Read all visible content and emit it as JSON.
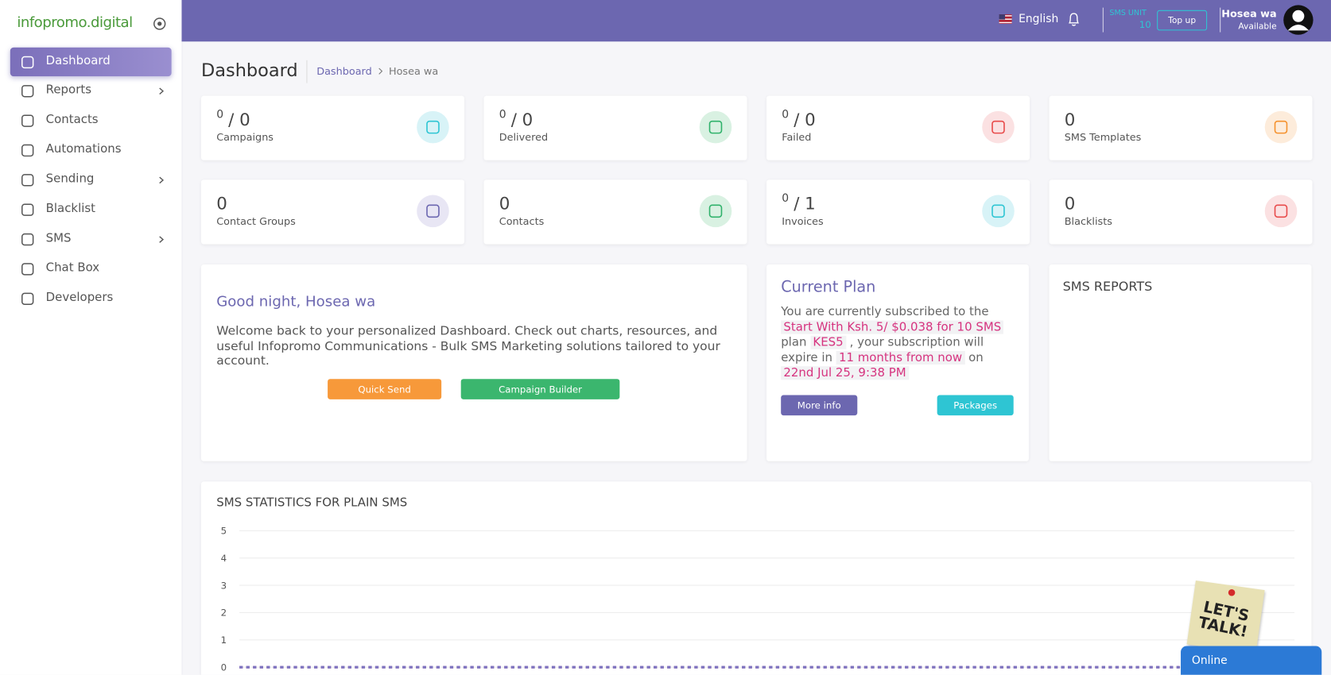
{
  "sidebar": {
    "logo": "infopromo.digital",
    "menu": [
      "Dashboard",
      "Reports",
      "Contacts",
      "Automations",
      "Sending",
      "Blacklist",
      "SMS",
      "Chat Box",
      "Developers"
    ]
  },
  "topbar": {
    "language": "English",
    "sms_unit_label": "SMS UNIT",
    "sms_unit_value": 10,
    "top_up": "Top up",
    "user_name": "Hosea wa",
    "user_status": "Available"
  },
  "page": {
    "title": "Dashboard",
    "breadcrumb": [
      "Dashboard",
      "Hosea wa"
    ]
  },
  "stats": [
    {
      "sup": 0,
      "main": "/ 0",
      "label": "Campaigns"
    },
    {
      "sup": 0,
      "main": "/ 0",
      "label": "Delivered"
    },
    {
      "sup": 0,
      "main": "/ 0",
      "label": "Failed"
    },
    {
      "main": 0,
      "label": "SMS Templates"
    },
    {
      "main": 0,
      "label": "Contact Groups"
    },
    {
      "main": 0,
      "label": "Contacts"
    },
    {
      "sup": 0,
      "main": "/ 1",
      "label": "Invoices"
    },
    {
      "main": 0,
      "label": "Blacklists"
    }
  ],
  "welcome": {
    "greeting": "Good night, Hosea wa",
    "text": "Welcome back to your personalized Dashboard. Check out charts, resources, and useful Infopromo Communications - Bulk SMS Marketing solutions tailored to your account.",
    "buttons": [
      "Quick Send",
      "Campaign Builder"
    ]
  },
  "plan": {
    "title": "Current Plan",
    "segments": [
      {
        "text": "You are currently subscribed to the",
        "highlight": false
      },
      {
        "text": "Start With Ksh. 5/ $0.038 for 10 SMS",
        "highlight": true
      },
      {
        "text": "plan",
        "highlight": false
      },
      {
        "text": "KES5",
        "highlight": true
      },
      {
        "text": ", your subscription will expire in",
        "highlight": false
      },
      {
        "text": "11 months from now",
        "highlight": true
      },
      {
        "text": "on",
        "highlight": false
      },
      {
        "text": "22nd Jul 25, 9:38 PM",
        "highlight": true
      }
    ],
    "buttons": [
      "More info",
      "Packages"
    ]
  },
  "reports": {
    "title": "SMS REPORTS"
  },
  "chart_data": {
    "type": "line",
    "title": "SMS STATISTICS FOR PLAIN SMS",
    "ylim": [
      0,
      5
    ],
    "yticks": [
      0,
      1,
      2,
      3,
      4,
      5
    ],
    "grid": true,
    "series": [
      {
        "color": "#e07ab8",
        "values": [
          0,
          0,
          0,
          0,
          0,
          0,
          0,
          0,
          0,
          0,
          0,
          0,
          0,
          0,
          0,
          0,
          0,
          0,
          0,
          0,
          0,
          0,
          0,
          0,
          0,
          0,
          0,
          0,
          0,
          0,
          0
        ]
      },
      {
        "color": "#7b74c0",
        "values": [
          0,
          0,
          0,
          0,
          0,
          0,
          0,
          0,
          0,
          0,
          0,
          0,
          0,
          0,
          0,
          0,
          0,
          0,
          0,
          0,
          0,
          0,
          0,
          0,
          0,
          0,
          0,
          0,
          0,
          0,
          0
        ]
      }
    ]
  },
  "widget": {
    "sticker": "LET'S TALK!",
    "status": "Online"
  }
}
